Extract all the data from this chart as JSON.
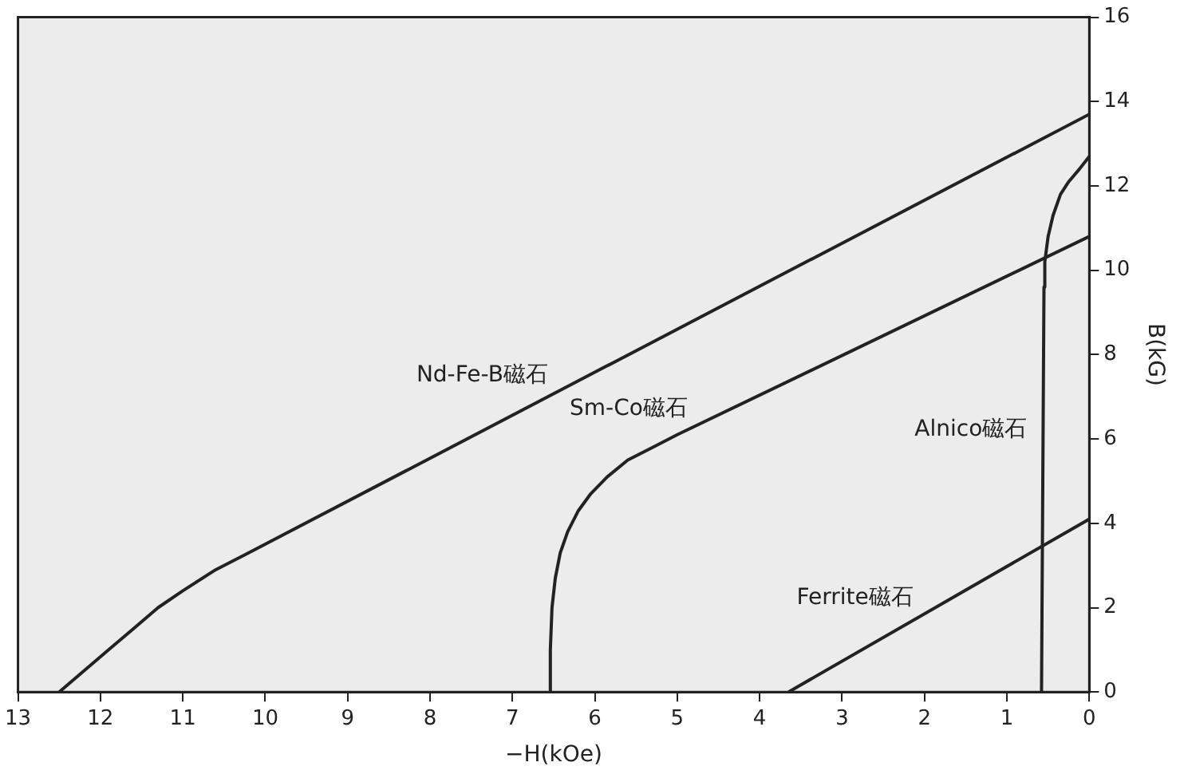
{
  "chart_data": {
    "type": "line",
    "xlabel": "−H(kOe)",
    "ylabel": "B(kG)",
    "xlim": [
      13,
      0
    ],
    "xticks": [
      13,
      12,
      11,
      10,
      9,
      8,
      7,
      6,
      5,
      4,
      3,
      2,
      1,
      0
    ],
    "ylim": [
      0,
      16
    ],
    "yticks": [
      0,
      2,
      4,
      6,
      8,
      10,
      12,
      14,
      16
    ],
    "grid": false,
    "legend": false,
    "marker": "none",
    "line_style": "solid",
    "series": [
      {
        "name": "Nd-Fe-B磁石",
        "color": "#222222",
        "x": [
          12.5,
          12.2,
          11.9,
          11.6,
          11.3,
          11,
          10.6,
          10.2,
          0
        ],
        "values": [
          0,
          0.5,
          1,
          1.5,
          2,
          2.4,
          2.9,
          3.3,
          13.7
        ]
      },
      {
        "name": "Sm-Co磁石",
        "color": "#222222",
        "x": [
          6.55,
          6.54,
          6.52,
          6.48,
          6.42,
          6.33,
          6.2,
          6.05,
          5.85,
          5.6,
          5.3,
          5,
          0
        ],
        "values": [
          0,
          1,
          2,
          2.7,
          3.3,
          3.8,
          4.3,
          4.7,
          5.1,
          5.5,
          5.8,
          6.1,
          10.8
        ]
      },
      {
        "name": "Alnico磁石",
        "color": "#222222",
        "x": [
          0.58,
          0.55,
          0.54,
          0.5,
          0.44,
          0.35,
          0.25,
          0.12,
          0
        ],
        "values": [
          0,
          9.6,
          10.2,
          10.8,
          11.3,
          11.8,
          12.1,
          12.4,
          12.7
        ]
      },
      {
        "name": "Ferrite磁石",
        "color": "#222222",
        "x": [
          3.65,
          0
        ],
        "values": [
          0,
          4.1
        ]
      }
    ]
  }
}
